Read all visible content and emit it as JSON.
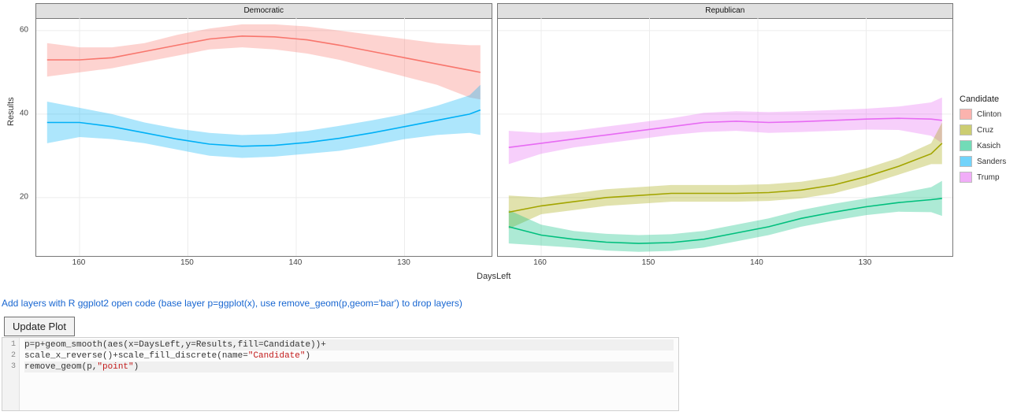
{
  "chart": {
    "x_label": "DaysLeft",
    "y_label": "Results",
    "facets": [
      "Democratic",
      "Republican"
    ],
    "x_domain": [
      164,
      122
    ],
    "y_domain": [
      6,
      63
    ],
    "x_ticks": [
      160,
      150,
      140,
      130
    ],
    "y_ticks": [
      20,
      40,
      60
    ],
    "grid_color": "#ececec",
    "panel_border": "#777777",
    "background": "#ffffff",
    "legend": {
      "title": "Candidate",
      "items": [
        {
          "label": "Clinton",
          "color": "#F8766D"
        },
        {
          "label": "Cruz",
          "color": "#A3A500"
        },
        {
          "label": "Kasich",
          "color": "#00BF7D"
        },
        {
          "label": "Sanders",
          "color": "#00B0F6"
        },
        {
          "label": "Trump",
          "color": "#E76BF3"
        }
      ]
    },
    "series": [
      {
        "name": "Clinton",
        "facet": "Democratic",
        "color": "#F8766D",
        "line": [
          [
            163,
            53
          ],
          [
            160,
            53
          ],
          [
            157,
            53.5
          ],
          [
            154,
            55
          ],
          [
            151,
            56.5
          ],
          [
            148,
            58
          ],
          [
            145,
            58.7
          ],
          [
            142,
            58.5
          ],
          [
            139,
            57.8
          ],
          [
            136,
            56.5
          ],
          [
            133,
            55
          ],
          [
            130,
            53.5
          ],
          [
            127,
            52
          ],
          [
            124,
            50.5
          ],
          [
            123,
            50
          ]
        ],
        "ribbon_top": [
          [
            163,
            57
          ],
          [
            160,
            56
          ],
          [
            157,
            56
          ],
          [
            154,
            57
          ],
          [
            151,
            59
          ],
          [
            148,
            60.5
          ],
          [
            145,
            61.5
          ],
          [
            142,
            61.5
          ],
          [
            139,
            61
          ],
          [
            136,
            60
          ],
          [
            133,
            59
          ],
          [
            130,
            58
          ],
          [
            127,
            57
          ],
          [
            124,
            56.5
          ],
          [
            123,
            56.5
          ]
        ],
        "ribbon_bot": [
          [
            163,
            49
          ],
          [
            160,
            50
          ],
          [
            157,
            51
          ],
          [
            154,
            52.5
          ],
          [
            151,
            54
          ],
          [
            148,
            55.5
          ],
          [
            145,
            56
          ],
          [
            142,
            55.5
          ],
          [
            139,
            54.5
          ],
          [
            136,
            53
          ],
          [
            133,
            51
          ],
          [
            130,
            49
          ],
          [
            127,
            47
          ],
          [
            124,
            44
          ],
          [
            123,
            43.5
          ]
        ]
      },
      {
        "name": "Sanders",
        "facet": "Democratic",
        "color": "#00B0F6",
        "line": [
          [
            163,
            38
          ],
          [
            160,
            38
          ],
          [
            157,
            37
          ],
          [
            154,
            35.5
          ],
          [
            151,
            34
          ],
          [
            148,
            32.8
          ],
          [
            145,
            32.3
          ],
          [
            142,
            32.5
          ],
          [
            139,
            33.2
          ],
          [
            136,
            34.2
          ],
          [
            133,
            35.5
          ],
          [
            130,
            37
          ],
          [
            127,
            38.5
          ],
          [
            124,
            40
          ],
          [
            123,
            41
          ]
        ],
        "ribbon_top": [
          [
            163,
            43
          ],
          [
            160,
            41.5
          ],
          [
            157,
            40
          ],
          [
            154,
            38
          ],
          [
            151,
            36.5
          ],
          [
            148,
            35.5
          ],
          [
            145,
            35
          ],
          [
            142,
            35.2
          ],
          [
            139,
            36
          ],
          [
            136,
            37.2
          ],
          [
            133,
            38.5
          ],
          [
            130,
            40
          ],
          [
            127,
            42
          ],
          [
            124,
            44.5
          ],
          [
            123,
            47
          ]
        ],
        "ribbon_bot": [
          [
            163,
            33
          ],
          [
            160,
            34.5
          ],
          [
            157,
            34
          ],
          [
            154,
            33
          ],
          [
            151,
            31.5
          ],
          [
            148,
            30
          ],
          [
            145,
            29.5
          ],
          [
            142,
            29.8
          ],
          [
            139,
            30.5
          ],
          [
            136,
            31.2
          ],
          [
            133,
            32.5
          ],
          [
            130,
            34
          ],
          [
            127,
            35
          ],
          [
            124,
            35.5
          ],
          [
            123,
            35
          ]
        ]
      },
      {
        "name": "Trump",
        "facet": "Republican",
        "color": "#E76BF3",
        "line": [
          [
            163,
            32
          ],
          [
            160,
            33
          ],
          [
            157,
            34
          ],
          [
            154,
            35
          ],
          [
            151,
            36
          ],
          [
            148,
            37
          ],
          [
            145,
            38
          ],
          [
            142,
            38.3
          ],
          [
            139,
            38
          ],
          [
            136,
            38.2
          ],
          [
            133,
            38.5
          ],
          [
            130,
            38.8
          ],
          [
            127,
            39
          ],
          [
            124,
            38.8
          ],
          [
            123,
            38.5
          ]
        ],
        "ribbon_top": [
          [
            163,
            36
          ],
          [
            160,
            35.5
          ],
          [
            157,
            36
          ],
          [
            154,
            37
          ],
          [
            151,
            38
          ],
          [
            148,
            39
          ],
          [
            145,
            40.3
          ],
          [
            142,
            40.7
          ],
          [
            139,
            40.5
          ],
          [
            136,
            40.7
          ],
          [
            133,
            41
          ],
          [
            130,
            41.3
          ],
          [
            127,
            41.8
          ],
          [
            124,
            42.8
          ],
          [
            123,
            44
          ]
        ],
        "ribbon_bot": [
          [
            163,
            28
          ],
          [
            160,
            30.5
          ],
          [
            157,
            32
          ],
          [
            154,
            33
          ],
          [
            151,
            34
          ],
          [
            148,
            35
          ],
          [
            145,
            35.7
          ],
          [
            142,
            36
          ],
          [
            139,
            35.5
          ],
          [
            136,
            35.7
          ],
          [
            133,
            36
          ],
          [
            130,
            36.3
          ],
          [
            127,
            36.2
          ],
          [
            124,
            34.8
          ],
          [
            123,
            33
          ]
        ]
      },
      {
        "name": "Cruz",
        "facet": "Republican",
        "color": "#A3A500",
        "line": [
          [
            163,
            16.5
          ],
          [
            160,
            18
          ],
          [
            157,
            19
          ],
          [
            154,
            20
          ],
          [
            151,
            20.5
          ],
          [
            148,
            21
          ],
          [
            145,
            21
          ],
          [
            142,
            21
          ],
          [
            139,
            21.2
          ],
          [
            136,
            21.8
          ],
          [
            133,
            23
          ],
          [
            130,
            25
          ],
          [
            127,
            27.5
          ],
          [
            124,
            30.5
          ],
          [
            123,
            33
          ]
        ],
        "ribbon_top": [
          [
            163,
            20.5
          ],
          [
            160,
            20
          ],
          [
            157,
            21
          ],
          [
            154,
            22
          ],
          [
            151,
            22.5
          ],
          [
            148,
            23
          ],
          [
            145,
            23
          ],
          [
            142,
            23
          ],
          [
            139,
            23.2
          ],
          [
            136,
            23.8
          ],
          [
            133,
            25
          ],
          [
            130,
            27
          ],
          [
            127,
            29.5
          ],
          [
            124,
            33
          ],
          [
            123,
            38
          ]
        ],
        "ribbon_bot": [
          [
            163,
            12.5
          ],
          [
            160,
            16
          ],
          [
            157,
            17
          ],
          [
            154,
            18
          ],
          [
            151,
            18.5
          ],
          [
            148,
            19
          ],
          [
            145,
            19
          ],
          [
            142,
            19
          ],
          [
            139,
            19.2
          ],
          [
            136,
            19.8
          ],
          [
            133,
            21
          ],
          [
            130,
            23
          ],
          [
            127,
            25.5
          ],
          [
            124,
            28
          ],
          [
            123,
            28
          ]
        ]
      },
      {
        "name": "Kasich",
        "facet": "Republican",
        "color": "#00BF7D",
        "line": [
          [
            163,
            13
          ],
          [
            160,
            11
          ],
          [
            157,
            10
          ],
          [
            154,
            9.3
          ],
          [
            151,
            9
          ],
          [
            148,
            9.2
          ],
          [
            145,
            10
          ],
          [
            142,
            11.5
          ],
          [
            139,
            13
          ],
          [
            136,
            15
          ],
          [
            133,
            16.5
          ],
          [
            130,
            17.8
          ],
          [
            127,
            18.8
          ],
          [
            124,
            19.5
          ],
          [
            123,
            19.8
          ]
        ],
        "ribbon_top": [
          [
            163,
            17
          ],
          [
            160,
            13.5
          ],
          [
            157,
            12
          ],
          [
            154,
            11.3
          ],
          [
            151,
            11
          ],
          [
            148,
            11.2
          ],
          [
            145,
            12
          ],
          [
            142,
            13.5
          ],
          [
            139,
            15
          ],
          [
            136,
            17
          ],
          [
            133,
            18.5
          ],
          [
            130,
            19.8
          ],
          [
            127,
            21
          ],
          [
            124,
            22.5
          ],
          [
            123,
            24
          ]
        ],
        "ribbon_bot": [
          [
            163,
            9
          ],
          [
            160,
            8.5
          ],
          [
            157,
            8
          ],
          [
            154,
            7.3
          ],
          [
            151,
            7
          ],
          [
            148,
            7.2
          ],
          [
            145,
            8
          ],
          [
            142,
            9.5
          ],
          [
            139,
            11
          ],
          [
            136,
            13
          ],
          [
            133,
            14.5
          ],
          [
            130,
            15.8
          ],
          [
            127,
            16.6
          ],
          [
            124,
            16.5
          ],
          [
            123,
            15.6
          ]
        ]
      }
    ]
  },
  "instructions_text": "Add layers with R ggplot2 open code (base layer p=ggplot(x), use remove_geom(p,geom='bar') to drop layers)",
  "update_button_label": "Update Plot",
  "code_lines": [
    "p=p+geom_smooth(aes(x=DaysLeft,y=Results,fill=Candidate))+",
    "scale_x_reverse()+scale_fill_discrete(name=\"Candidate\")",
    "remove_geom(p,\"point\")"
  ]
}
